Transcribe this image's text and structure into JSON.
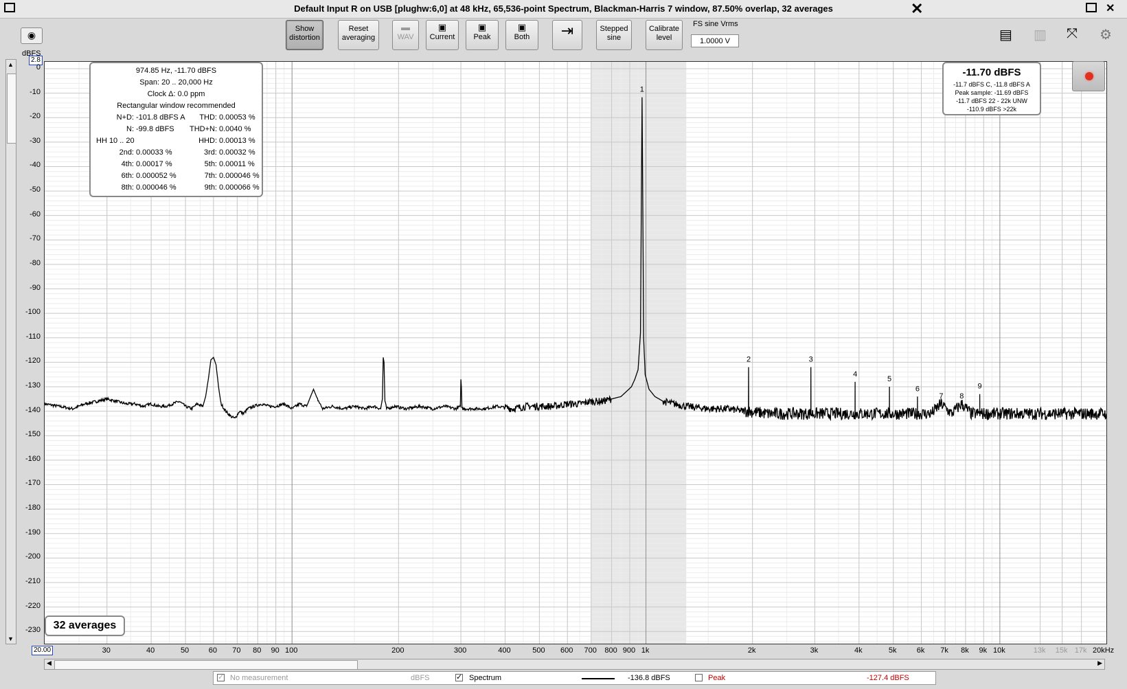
{
  "window": {
    "title": "Default Input R on USB [plughw:6,0] at 48 kHz, 65,536-point Spectrum, Blackman-Harris 7 window, 87.50% overlap, 32 averages"
  },
  "toolbar": {
    "show_distortion": "Show distortion",
    "reset_averaging": "Reset averaging",
    "wav": "WAV",
    "current": "Current",
    "peak": "Peak",
    "both": "Both",
    "stepped_sine": "Stepped sine",
    "calibrate_level": "Calibrate level",
    "fs_label": "FS sine Vrms",
    "fs_value": "1.0000 V"
  },
  "axis": {
    "y_unit": "dBFS",
    "y_top_value": "2.8",
    "x_start_value": "20.00",
    "x_unit": "20kHz"
  },
  "distortion": {
    "header": [
      "974.85 Hz, -11.70 dBFS",
      "Span: 20 .. 20,000 Hz",
      "Clock Δ: 0.0 ppm",
      "Rectangular window recommended"
    ],
    "rows": [
      [
        "N+D:",
        "-101.8 dBFS A",
        "THD:",
        "0.00053 %"
      ],
      [
        "N:",
        "-99.8 dBFS",
        "THD+N:",
        "0.0040 %"
      ],
      [
        "HH 10 .. 20",
        "",
        "HHD:",
        "0.00013 %"
      ],
      [
        "2nd:",
        "0.00033 %",
        "3rd:",
        "0.00032 %"
      ],
      [
        "4th:",
        "0.00017 %",
        "5th:",
        "0.00011 %"
      ],
      [
        "6th:",
        "0.000052 %",
        "7th:",
        "0.000046 %"
      ],
      [
        "8th:",
        "0.000046 %",
        "9th:",
        "0.000066 %"
      ]
    ]
  },
  "level_meter": {
    "main": "-11.70 dBFS",
    "lines": [
      "-11.7 dBFS C, -11.8 dBFS A",
      "Peak sample: -11.69 dBFS",
      "-11.7 dBFS 22 - 22k UNW",
      "-110.9 dBFS >22k"
    ]
  },
  "averages_label": "32 averages",
  "legend": {
    "no_measurement": "No measurement",
    "no_measurement_unit": "dBFS",
    "spectrum": "Spectrum",
    "spectrum_value": "-136.8 dBFS",
    "peak": "Peak",
    "peak_value": "-127.4 dBFS"
  },
  "colors": {
    "trace": "#000000",
    "peak": "#c00000",
    "highlight_band": "#e8e8e8"
  },
  "chart_data": {
    "type": "line",
    "title": "",
    "xlabel": "",
    "ylabel": "dBFS",
    "x_scale": "log",
    "xlim": [
      20,
      20000
    ],
    "ylim": [
      -235,
      2.8
    ],
    "grid": true,
    "y_ticks": [
      0,
      -10,
      -20,
      -30,
      -40,
      -50,
      -60,
      -70,
      -80,
      -90,
      -100,
      -110,
      -120,
      -130,
      -140,
      -150,
      -160,
      -170,
      -180,
      -190,
      -200,
      -210,
      -220,
      -230
    ],
    "x_ticks": [
      {
        "v": 30,
        "label": "30"
      },
      {
        "v": 40,
        "label": "40"
      },
      {
        "v": 50,
        "label": "50"
      },
      {
        "v": 60,
        "label": "60"
      },
      {
        "v": 70,
        "label": "70"
      },
      {
        "v": 80,
        "label": "80"
      },
      {
        "v": 90,
        "label": "90"
      },
      {
        "v": 100,
        "label": "100"
      },
      {
        "v": 200,
        "label": "200"
      },
      {
        "v": 300,
        "label": "300"
      },
      {
        "v": 400,
        "label": "400"
      },
      {
        "v": 500,
        "label": "500"
      },
      {
        "v": 600,
        "label": "600"
      },
      {
        "v": 700,
        "label": "700"
      },
      {
        "v": 800,
        "label": "800"
      },
      {
        "v": 900,
        "label": "900"
      },
      {
        "v": 1000,
        "label": "1k"
      },
      {
        "v": 2000,
        "label": "2k"
      },
      {
        "v": 3000,
        "label": "3k"
      },
      {
        "v": 4000,
        "label": "4k"
      },
      {
        "v": 5000,
        "label": "5k"
      },
      {
        "v": 6000,
        "label": "6k"
      },
      {
        "v": 7000,
        "label": "7k"
      },
      {
        "v": 8000,
        "label": "8k"
      },
      {
        "v": 9000,
        "label": "9k"
      },
      {
        "v": 10000,
        "label": "10k"
      },
      {
        "v": 13000,
        "label": "13k",
        "dim": true
      },
      {
        "v": 15000,
        "label": "15k",
        "dim": true
      },
      {
        "v": 17000,
        "label": "17k",
        "dim": true
      }
    ],
    "highlight_band": [
      700,
      1300
    ],
    "harmonic_markers": [
      {
        "n": "1",
        "x": 975,
        "y": -11.7
      },
      {
        "n": "2",
        "x": 1950,
        "y": -122
      },
      {
        "n": "3",
        "x": 2925,
        "y": -122
      },
      {
        "n": "4",
        "x": 3900,
        "y": -128
      },
      {
        "n": "5",
        "x": 4875,
        "y": -130
      },
      {
        "n": "6",
        "x": 5850,
        "y": -134
      },
      {
        "n": "7",
        "x": 6825,
        "y": -137
      },
      {
        "n": "8",
        "x": 7800,
        "y": -137
      },
      {
        "n": "9",
        "x": 8775,
        "y": -133
      }
    ],
    "series": [
      {
        "name": "Spectrum",
        "points": [
          [
            20,
            -137
          ],
          [
            22,
            -138
          ],
          [
            24,
            -139
          ],
          [
            26,
            -137
          ],
          [
            28,
            -136
          ],
          [
            30,
            -135
          ],
          [
            32,
            -136
          ],
          [
            34,
            -137
          ],
          [
            36,
            -137
          ],
          [
            38,
            -138
          ],
          [
            40,
            -137
          ],
          [
            42,
            -138
          ],
          [
            44,
            -138
          ],
          [
            46,
            -137
          ],
          [
            48,
            -136
          ],
          [
            50,
            -138
          ],
          [
            52,
            -139
          ],
          [
            54,
            -137
          ],
          [
            56,
            -138
          ],
          [
            57,
            -134
          ],
          [
            58,
            -127
          ],
          [
            59,
            -119
          ],
          [
            60,
            -118
          ],
          [
            61,
            -121
          ],
          [
            62,
            -130
          ],
          [
            63,
            -137
          ],
          [
            65,
            -140
          ],
          [
            67,
            -142
          ],
          [
            69,
            -143
          ],
          [
            71,
            -140
          ],
          [
            73,
            -141
          ],
          [
            75,
            -139
          ],
          [
            78,
            -138
          ],
          [
            82,
            -137
          ],
          [
            86,
            -138
          ],
          [
            90,
            -138
          ],
          [
            95,
            -137
          ],
          [
            100,
            -139
          ],
          [
            105,
            -137
          ],
          [
            110,
            -138
          ],
          [
            115,
            -131
          ],
          [
            118,
            -135
          ],
          [
            122,
            -139
          ],
          [
            130,
            -138
          ],
          [
            140,
            -139
          ],
          [
            150,
            -138
          ],
          [
            160,
            -139
          ],
          [
            170,
            -138
          ],
          [
            178,
            -139
          ],
          [
            180,
            -135
          ],
          [
            181,
            -118
          ],
          [
            182,
            -120
          ],
          [
            183,
            -136
          ],
          [
            185,
            -139
          ],
          [
            195,
            -138
          ],
          [
            210,
            -139
          ],
          [
            230,
            -138
          ],
          [
            250,
            -139
          ],
          [
            270,
            -138
          ],
          [
            290,
            -139
          ],
          [
            299,
            -138
          ],
          [
            300,
            -127
          ],
          [
            301,
            -130
          ],
          [
            302,
            -139
          ],
          [
            320,
            -139
          ],
          [
            350,
            -139
          ],
          [
            380,
            -138
          ],
          [
            420,
            -139
          ],
          [
            460,
            -138
          ],
          [
            500,
            -138
          ],
          [
            550,
            -138
          ],
          [
            600,
            -137
          ],
          [
            650,
            -137
          ],
          [
            700,
            -136
          ],
          [
            750,
            -136
          ],
          [
            800,
            -135
          ],
          [
            850,
            -134
          ],
          [
            880,
            -132
          ],
          [
            910,
            -130
          ],
          [
            930,
            -127
          ],
          [
            950,
            -123
          ],
          [
            965,
            -108
          ],
          [
            972,
            -40
          ],
          [
            975,
            -11.7
          ],
          [
            978,
            -40
          ],
          [
            985,
            -110
          ],
          [
            995,
            -125
          ],
          [
            1020,
            -131
          ],
          [
            1060,
            -134
          ],
          [
            1120,
            -136
          ],
          [
            1200,
            -137
          ],
          [
            1300,
            -138
          ],
          [
            1500,
            -139
          ],
          [
            1700,
            -139
          ],
          [
            1900,
            -140
          ],
          [
            1948,
            -140
          ],
          [
            1950,
            -122
          ],
          [
            1952,
            -140
          ],
          [
            2200,
            -141
          ],
          [
            2500,
            -141
          ],
          [
            2800,
            -141
          ],
          [
            2923,
            -141
          ],
          [
            2925,
            -122
          ],
          [
            2927,
            -141
          ],
          [
            3300,
            -141
          ],
          [
            3700,
            -141
          ],
          [
            3898,
            -141
          ],
          [
            3900,
            -128
          ],
          [
            3902,
            -141
          ],
          [
            4400,
            -141
          ],
          [
            4873,
            -141
          ],
          [
            4875,
            -130
          ],
          [
            4877,
            -141
          ],
          [
            5400,
            -141
          ],
          [
            5848,
            -141
          ],
          [
            5850,
            -134
          ],
          [
            5852,
            -141
          ],
          [
            6400,
            -141
          ],
          [
            6825,
            -137
          ],
          [
            7300,
            -141
          ],
          [
            7800,
            -137
          ],
          [
            8300,
            -141
          ],
          [
            8773,
            -141
          ],
          [
            8775,
            -133
          ],
          [
            8777,
            -141
          ],
          [
            9500,
            -141
          ],
          [
            10200,
            -141
          ],
          [
            11000,
            -141
          ],
          [
            12500,
            -141
          ],
          [
            14000,
            -141
          ],
          [
            16000,
            -141
          ],
          [
            18000,
            -141
          ],
          [
            20000,
            -141
          ]
        ]
      }
    ]
  }
}
